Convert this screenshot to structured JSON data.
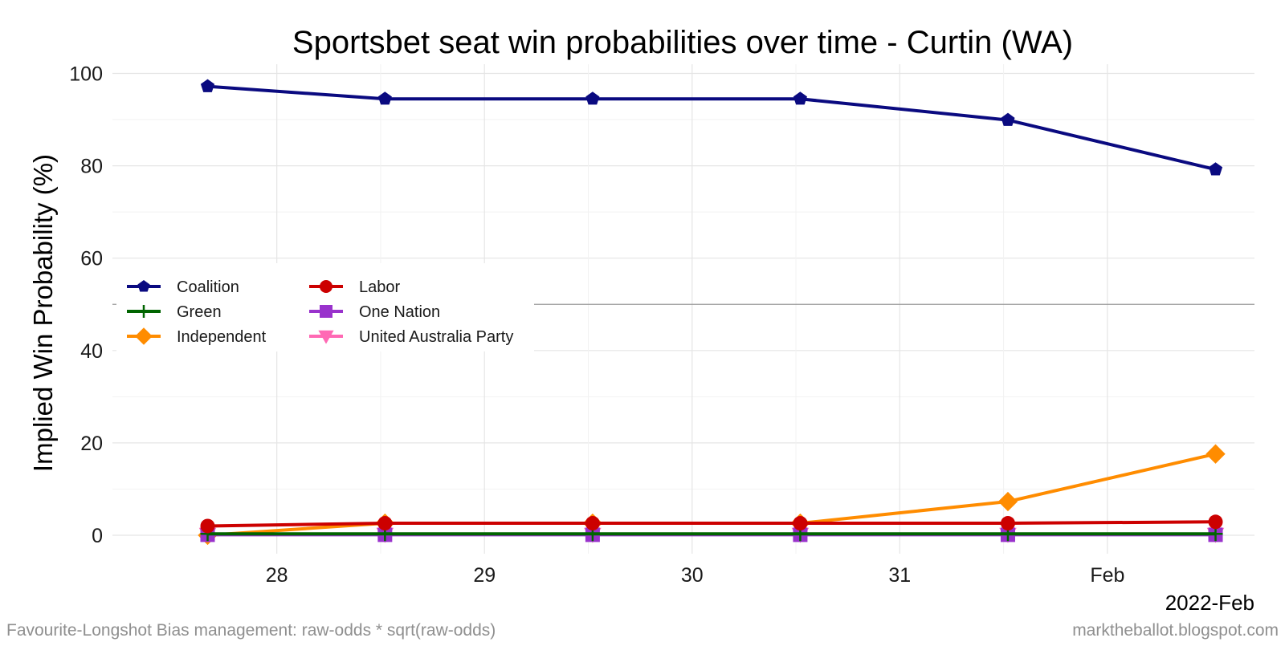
{
  "chart_data": {
    "type": "line",
    "title": "Sportsbet seat win probabilities over time - Curtin (WA)",
    "ylabel": "Implied Win Probability (%)",
    "xlabel": "",
    "x_axis_date_label": "2022-Feb",
    "ylim": [
      -4,
      102
    ],
    "yticks": [
      0,
      20,
      40,
      60,
      80,
      100
    ],
    "xticks": [
      {
        "label": "28",
        "date": "2022-01-28"
      },
      {
        "label": "29",
        "date": "2022-01-29"
      },
      {
        "label": "30",
        "date": "2022-01-30"
      },
      {
        "label": "31",
        "date": "2022-01-31"
      },
      {
        "label": "Feb",
        "date": "2022-02-01"
      }
    ],
    "xlim": [
      "2022-01-27T05:00",
      "2022-02-01T17:00"
    ],
    "x": [
      "2022-01-27T16:00",
      "2022-01-28T12:30",
      "2022-01-29T12:30",
      "2022-01-30T12:30",
      "2022-01-31T12:30",
      "2022-02-01T12:30"
    ],
    "reference_line": 50,
    "grid": true,
    "legend_position": "middle-left",
    "series": [
      {
        "name": "Coalition",
        "color": "#0a0a80",
        "marker": "pentagon",
        "values": [
          97.2,
          94.5,
          94.5,
          94.5,
          89.9,
          79.2
        ]
      },
      {
        "name": "Labor",
        "color": "#cc0000",
        "marker": "circle",
        "values": [
          2.0,
          2.6,
          2.6,
          2.6,
          2.6,
          2.9
        ]
      },
      {
        "name": "Green",
        "color": "#006400",
        "marker": "plus",
        "values": [
          0.3,
          0.3,
          0.3,
          0.3,
          0.3,
          0.3
        ]
      },
      {
        "name": "One Nation",
        "color": "#9932cc",
        "marker": "square",
        "values": [
          0.1,
          0.1,
          0.1,
          0.1,
          0.1,
          0.1
        ]
      },
      {
        "name": "Independent",
        "color": "#ff8c00",
        "marker": "diamond",
        "values": [
          0.0,
          2.6,
          2.6,
          2.6,
          7.3,
          17.6
        ]
      },
      {
        "name": "United Australia Party",
        "color": "#ff69b4",
        "marker": "triangle-down",
        "values": [
          0.2,
          0.2,
          0.2,
          0.2,
          0.2,
          0.2
        ]
      }
    ]
  },
  "footer": {
    "left": "Favourite-Longshot Bias management: raw-odds * sqrt(raw-odds)",
    "right": "marktheballot.blogspot.com"
  }
}
